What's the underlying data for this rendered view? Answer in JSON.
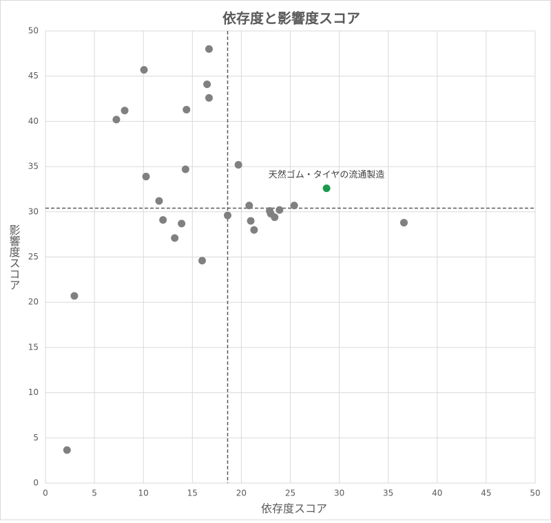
{
  "chart_data": {
    "type": "scatter",
    "title": "依存度と影響度スコア",
    "x_label": "依存度スコア",
    "y_label": "影響度スコア",
    "xlim": [
      0,
      50
    ],
    "xticks": [
      0,
      5,
      10,
      15,
      20,
      25,
      30,
      35,
      40,
      45,
      50
    ],
    "ylim": [
      0,
      50
    ],
    "yticks": [
      0,
      5,
      10,
      15,
      20,
      25,
      30,
      35,
      40,
      45,
      50
    ],
    "grid": true,
    "ref_x": 18.6,
    "ref_y": 30.4,
    "series": [
      {
        "color": "#808080",
        "x": [
          2.2,
          2.95,
          7.24,
          8.09,
          10.06,
          10.27,
          11.6,
          12.0,
          13.2,
          13.9,
          14.3,
          14.4,
          16.0,
          16.5,
          16.7,
          16.7,
          18.6,
          19.7,
          20.8,
          20.96,
          21.3,
          22.9,
          23.0,
          23.4,
          23.9,
          25.4,
          36.6
        ],
        "values": [
          3.65,
          20.7,
          40.2,
          41.2,
          45.7,
          33.9,
          31.2,
          29.1,
          27.1,
          28.7,
          34.7,
          41.3,
          24.6,
          44.1,
          48.0,
          42.6,
          29.6,
          35.2,
          30.7,
          29.0,
          28.0,
          30.1,
          29.8,
          29.4,
          30.2,
          30.7,
          28.8
        ]
      },
      {
        "color": "#1a9b4b",
        "x": [
          28.7
        ],
        "values": [
          32.6
        ],
        "labels": [
          "天然ゴム・タイヤの流通製造"
        ]
      }
    ]
  }
}
